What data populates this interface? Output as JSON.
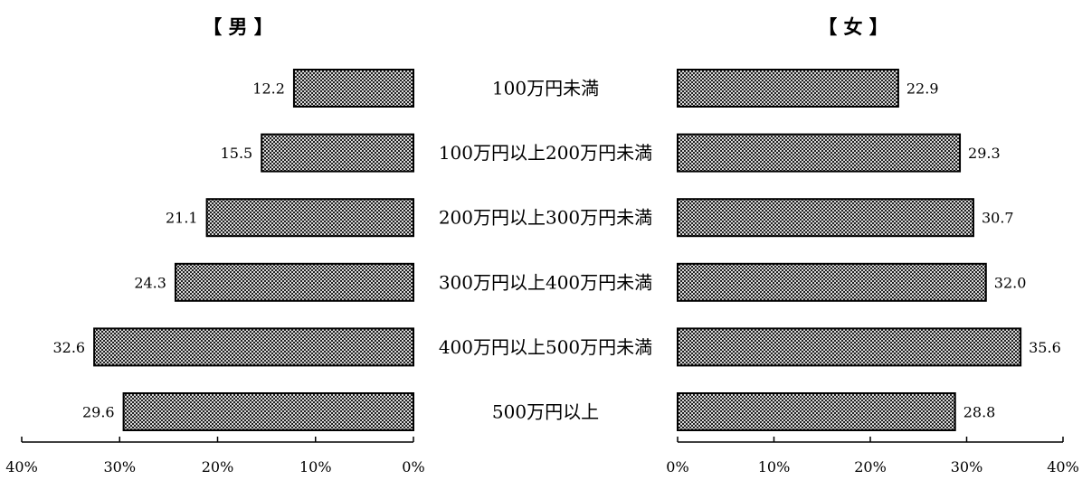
{
  "chart_data": [
    {
      "type": "bar",
      "orientation": "horizontal",
      "direction": "right-to-left",
      "title": "【 男 】",
      "categories": [
        "100万円未満",
        "100万円以上200万円未満",
        "200万円以上300万円未満",
        "300万円以上400万円未満",
        "400万円以上500万円未満",
        "500万円以上"
      ],
      "values": [
        12.2,
        15.5,
        21.1,
        24.3,
        32.6,
        29.6
      ],
      "value_labels": [
        "12.2",
        "15.5",
        "21.1",
        "24.3",
        "32.6",
        "29.6"
      ],
      "xlim": [
        0,
        40
      ],
      "ticks": [
        "40%",
        "30%",
        "20%",
        "10%",
        "0%"
      ],
      "grid": false
    },
    {
      "type": "bar",
      "orientation": "horizontal",
      "direction": "left-to-right",
      "title": "【 女 】",
      "categories": [
        "100万円未満",
        "100万円以上200万円未満",
        "200万円以上300万円未満",
        "300万円以上400万円未満",
        "400万円以上500万円未満",
        "500万円以上"
      ],
      "values": [
        22.9,
        29.3,
        30.7,
        32.0,
        35.6,
        28.8
      ],
      "value_labels": [
        "22.9",
        "29.3",
        "30.7",
        "32.0",
        "35.6",
        "28.8"
      ],
      "xlim": [
        0,
        40
      ],
      "ticks": [
        "0%",
        "10%",
        "20%",
        "30%",
        "40%"
      ],
      "grid": false
    }
  ],
  "colors": {
    "bar_fill": "#000000",
    "bar_pattern_light": "#d8d8d8",
    "axis": "#000000"
  }
}
